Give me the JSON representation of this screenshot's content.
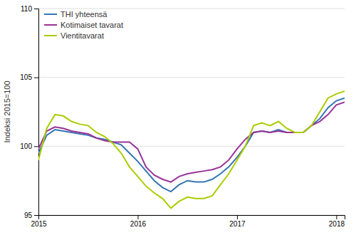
{
  "chart_data": {
    "type": "line",
    "y_label": "Indeksi 2015=100",
    "categories": [
      "2015",
      null,
      null,
      null,
      null,
      null,
      null,
      null,
      null,
      null,
      null,
      null,
      "2016",
      null,
      null,
      null,
      null,
      null,
      null,
      null,
      null,
      null,
      null,
      null,
      "2017",
      null,
      null,
      null,
      null,
      null,
      null,
      null,
      null,
      null,
      null,
      null,
      "2018",
      null
    ],
    "series": [
      {
        "name": "THI yhteensä",
        "color": "#3375b5",
        "values": [
          99.5,
          100.8,
          101.2,
          101.1,
          101.0,
          100.9,
          100.8,
          100.6,
          100.5,
          100.3,
          100.1,
          99.5,
          98.9,
          98.2,
          97.5,
          97.0,
          96.7,
          97.2,
          97.5,
          97.4,
          97.4,
          97.6,
          98.0,
          98.5,
          99.2,
          100.0,
          101.0,
          101.1,
          101.0,
          101.2,
          101.0,
          101.0,
          101.0,
          101.5,
          102.0,
          102.8,
          103.3,
          103.5
        ]
      },
      {
        "name": "Kotimaiset tavarat",
        "color": "#993399",
        "values": [
          99.8,
          101.1,
          101.4,
          101.3,
          101.1,
          101.0,
          100.9,
          100.6,
          100.4,
          100.3,
          100.3,
          100.3,
          99.8,
          98.5,
          97.9,
          97.6,
          97.4,
          97.8,
          98.0,
          98.1,
          98.2,
          98.3,
          98.5,
          99.0,
          99.8,
          100.5,
          101.0,
          101.1,
          101.0,
          101.1,
          101.0,
          101.0,
          101.0,
          101.5,
          101.8,
          102.3,
          103.0,
          103.2
        ]
      },
      {
        "name": "Vientitavarat",
        "color": "#aacc00",
        "values": [
          99.0,
          101.3,
          102.3,
          102.2,
          101.8,
          101.6,
          101.5,
          101.0,
          100.7,
          100.2,
          99.5,
          98.5,
          97.8,
          97.1,
          96.6,
          96.2,
          95.5,
          96.0,
          96.3,
          96.2,
          96.2,
          96.4,
          97.2,
          98.0,
          99.0,
          100.0,
          101.5,
          101.7,
          101.5,
          101.8,
          101.3,
          101.0,
          101.0,
          101.5,
          102.5,
          103.5,
          103.8,
          104.0
        ]
      }
    ],
    "ylim": [
      95,
      110
    ],
    "yticks": [
      95,
      100,
      105,
      110
    ],
    "grid": true,
    "legend": "top-left"
  }
}
